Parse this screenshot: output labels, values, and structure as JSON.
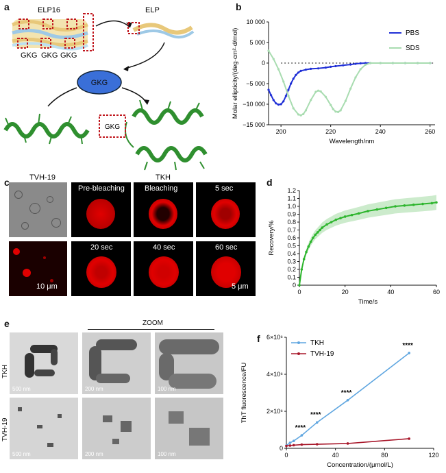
{
  "panels": {
    "a": {
      "label": "a",
      "top_left": "ELP16",
      "top_right": "ELP",
      "motif_row": [
        "GKG",
        "GKG",
        "GKG"
      ],
      "center": "GKG",
      "bottom_left": "TVH-19",
      "bottom_right": "TKH",
      "box_tag": "GKG"
    },
    "b": {
      "label": "b"
    },
    "c": {
      "label": "c",
      "frame_titles": [
        "Pre-bleaching",
        "Bleaching",
        "5 sec",
        "20 sec",
        "40 sec",
        "60 sec"
      ],
      "scale_left": "10 μm",
      "scale_right": "5 μm"
    },
    "d": {
      "label": "d"
    },
    "e": {
      "label": "e",
      "zoom_label": "ZOOM",
      "row_labels": [
        "TKH",
        "TVH-19"
      ],
      "scales": [
        "500 nm",
        "200 nm",
        "100 nm",
        "500 nm",
        "200 nm",
        "100 nm"
      ]
    },
    "f": {
      "label": "f"
    }
  },
  "colors": {
    "pbs": "#1f2fd6",
    "sds": "#a8dcb0",
    "recovery": "#2db52d",
    "recovery_band": "#bfe6bf",
    "tkh": "#5fa6e0",
    "tvh": "#a8182b",
    "red": "#e00000",
    "helix": "#2f8f2f"
  },
  "chart_data": [
    {
      "id": "b",
      "type": "line",
      "xlabel": "Wavelength/nm",
      "ylabel": "Molar ellipticity/(deg·cm²·d/mol)",
      "xlim": [
        195,
        262
      ],
      "ylim": [
        -15000,
        10000
      ],
      "xticks": [
        200,
        220,
        240,
        260
      ],
      "yticks": [
        10000,
        5000,
        0,
        -5000,
        -10000,
        -15000
      ],
      "ytick_labels": [
        "10 000",
        "5 000",
        "0",
        "−5 000",
        "−10 000",
        "−15 000"
      ],
      "legend_position": "top-right",
      "series": [
        {
          "name": "PBS",
          "color": "#1f2fd6",
          "x": [
            195,
            196,
            197,
            198,
            199,
            200,
            201,
            202,
            203,
            204,
            205,
            206,
            207,
            208,
            210,
            212,
            215,
            218,
            220,
            222,
            225,
            228,
            230,
            232,
            234,
            236,
            240,
            245,
            250,
            255,
            260
          ],
          "y": [
            -6500,
            -7800,
            -9000,
            -9800,
            -10100,
            -10000,
            -9300,
            -8000,
            -6500,
            -5000,
            -3800,
            -2900,
            -2300,
            -1900,
            -1600,
            -1400,
            -1300,
            -1100,
            -900,
            -750,
            -550,
            -350,
            -180,
            -60,
            0,
            0,
            0,
            0,
            0,
            0,
            0
          ]
        },
        {
          "name": "SDS",
          "color": "#a8dcb0",
          "x": [
            195,
            197,
            199,
            201,
            203,
            205,
            207,
            208,
            209,
            210,
            212,
            214,
            215,
            216,
            218,
            220,
            221,
            222,
            223,
            224,
            226,
            228,
            230,
            232,
            234,
            236,
            240,
            245,
            250,
            255,
            260
          ],
          "y": [
            3000,
            1000,
            -1500,
            -4500,
            -8000,
            -11000,
            -12500,
            -12700,
            -12400,
            -11500,
            -9000,
            -7000,
            -6700,
            -6900,
            -8200,
            -10200,
            -11200,
            -11800,
            -11900,
            -11500,
            -9200,
            -6200,
            -3500,
            -1500,
            -400,
            0,
            0,
            0,
            0,
            0,
            0
          ]
        }
      ]
    },
    {
      "id": "d",
      "type": "line",
      "xlabel": "Time/s",
      "ylabel": "Recovery/%",
      "xlim": [
        0,
        60
      ],
      "ylim": [
        0,
        1.2
      ],
      "xticks": [
        0,
        20,
        40,
        60
      ],
      "yticks": [
        0,
        0.1,
        0.2,
        0.3,
        0.4,
        0.5,
        0.6,
        0.7,
        0.8,
        0.9,
        1.0,
        1.1,
        1.2
      ],
      "ytick_labels": [
        "0",
        "0.1",
        "0.2",
        "0.3",
        "0.4",
        "0.5",
        "0.6",
        "0.7",
        "0.8",
        "0.9",
        "1.0",
        "1.1",
        "1.2"
      ],
      "series": [
        {
          "color": "#2db52d",
          "x": [
            0,
            1,
            2,
            3,
            4,
            5,
            6,
            7,
            8,
            9,
            10,
            12,
            14,
            16,
            18,
            20,
            23,
            26,
            30,
            34,
            38,
            42,
            46,
            50,
            54,
            58,
            60
          ],
          "y": [
            0,
            0.2,
            0.33,
            0.42,
            0.49,
            0.55,
            0.6,
            0.64,
            0.67,
            0.7,
            0.73,
            0.77,
            0.8,
            0.83,
            0.85,
            0.87,
            0.89,
            0.91,
            0.94,
            0.96,
            0.98,
            1.0,
            1.01,
            1.02,
            1.03,
            1.04,
            1.05
          ]
        }
      ]
    },
    {
      "id": "f",
      "type": "line",
      "xlabel": "Concentration/(μmol/L)",
      "ylabel": "ThT fluorescence/FU",
      "xlim": [
        0,
        120
      ],
      "ylim": [
        0,
        6000000
      ],
      "xticks": [
        0,
        40,
        80,
        120
      ],
      "yticks": [
        0,
        2000000,
        4000000,
        6000000
      ],
      "ytick_labels": [
        "0",
        "2×10⁶",
        "4×10⁶",
        "6×10⁶"
      ],
      "legend_position": "top-left",
      "annotations": [
        "****",
        "****",
        "****",
        "****"
      ],
      "series": [
        {
          "name": "TKH",
          "color": "#5fa6e0",
          "x": [
            0,
            3,
            6,
            12.5,
            25,
            50,
            100
          ],
          "y": [
            150000,
            300000,
            400000,
            700000,
            1400000,
            2600000,
            5150000
          ]
        },
        {
          "name": "TVH-19",
          "color": "#a8182b",
          "x": [
            0,
            3,
            6,
            12.5,
            25,
            50,
            100
          ],
          "y": [
            130000,
            150000,
            170000,
            200000,
            220000,
            260000,
            520000
          ]
        }
      ]
    }
  ]
}
